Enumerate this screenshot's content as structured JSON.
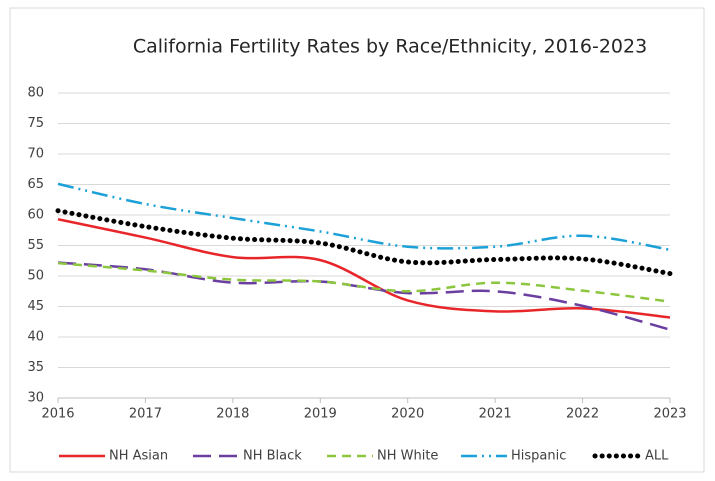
{
  "chart_data": {
    "type": "line",
    "title": "California Fertility Rates by Race/Ethnicity, 2016-2023",
    "x": [
      2016,
      2017,
      2018,
      2019,
      2020,
      2021,
      2022,
      2023
    ],
    "xlim": [
      2016,
      2023
    ],
    "xticks": [
      2016,
      2017,
      2018,
      2019,
      2020,
      2021,
      2022,
      2023
    ],
    "ylim": [
      30,
      80
    ],
    "yticks": [
      30,
      35,
      40,
      45,
      50,
      55,
      60,
      65,
      70,
      75,
      80
    ],
    "grid": true,
    "legend": "bottom",
    "series": [
      {
        "name": "NH Asian",
        "color": "#e8262a",
        "values": [
          59.3,
          56.3,
          53.1,
          52.6,
          46.0,
          44.2,
          44.7,
          43.2
        ]
      },
      {
        "name": "NH Black",
        "color": "#6a3fa0",
        "values": [
          52.2,
          51.1,
          48.9,
          49.1,
          47.2,
          47.5,
          45.1,
          41.2
        ]
      },
      {
        "name": "NH White",
        "color": "#8cc63f",
        "values": [
          52.1,
          50.9,
          49.4,
          49.1,
          47.5,
          48.9,
          47.6,
          45.8
        ]
      },
      {
        "name": "Hispanic",
        "color": "#1ba1d8",
        "values": [
          65.1,
          61.8,
          59.5,
          57.3,
          54.8,
          54.8,
          56.6,
          54.3
        ]
      },
      {
        "name": "ALL",
        "color": "#000000",
        "values": [
          60.7,
          58.1,
          56.2,
          55.4,
          52.3,
          52.7,
          52.8,
          50.4
        ]
      }
    ]
  }
}
